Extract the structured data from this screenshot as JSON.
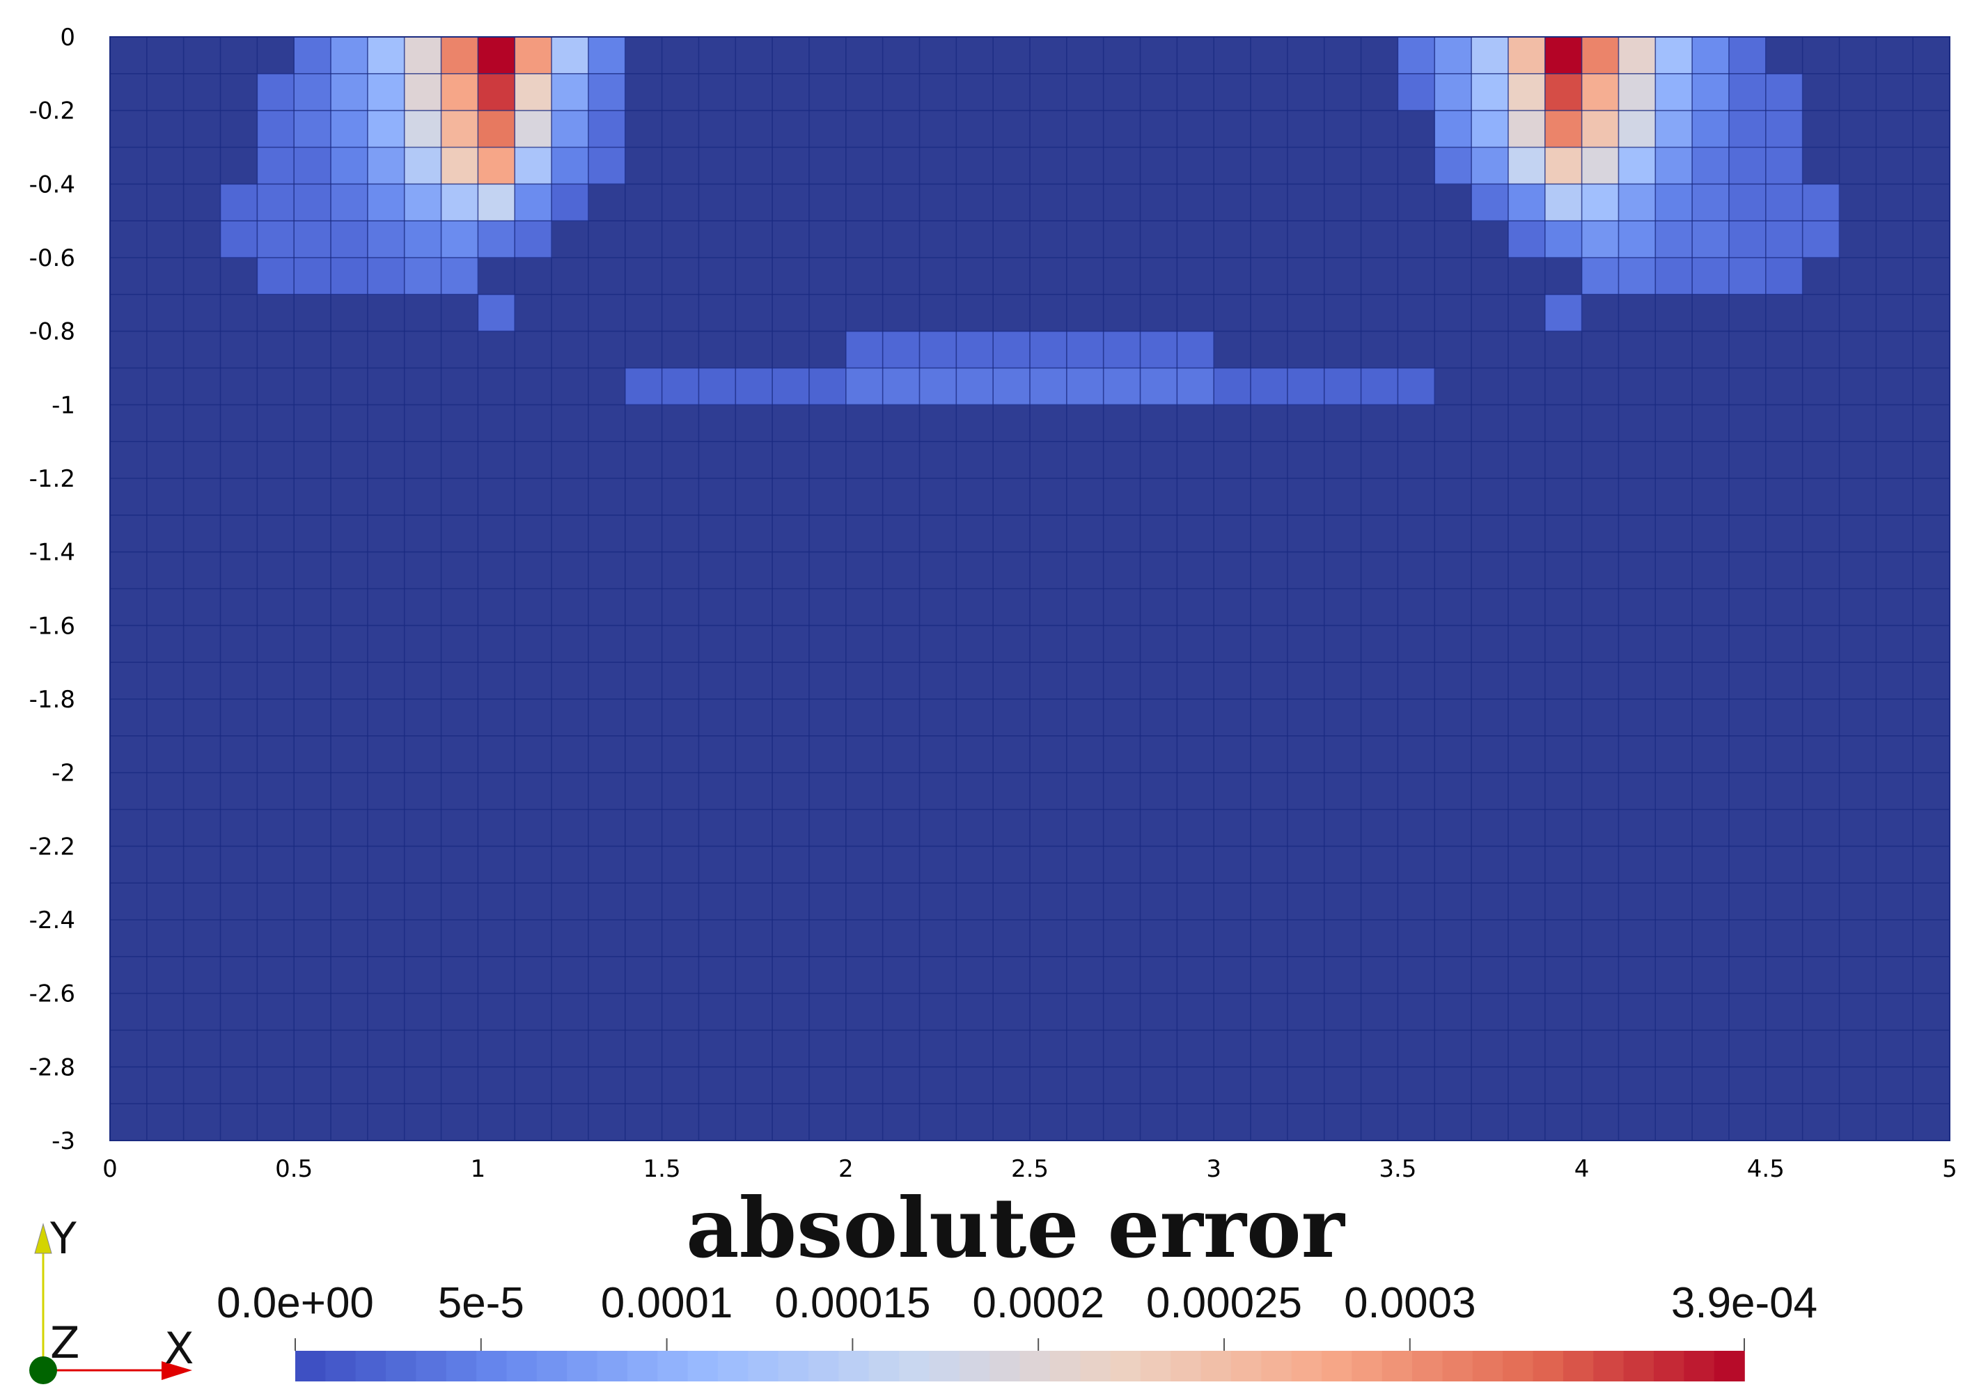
{
  "chart_data": {
    "type": "heatmap",
    "title": "absolute error",
    "xlim": [
      0,
      5
    ],
    "ylim": [
      -3,
      0
    ],
    "x_ticks": [
      "0",
      "0.5",
      "1",
      "1.5",
      "2",
      "2.5",
      "3",
      "3.5",
      "4",
      "4.5",
      "5"
    ],
    "y_ticks": [
      "0",
      "-0.2",
      "-0.4",
      "-0.6",
      "-0.8",
      "-1",
      "-1.2",
      "-1.4",
      "-1.6",
      "-1.8",
      "-2",
      "-2.2",
      "-2.4",
      "-2.6",
      "-2.8",
      "-3"
    ],
    "grid_cols": 50,
    "grid_rows": 30,
    "cell_size": 0.1,
    "vmin": 0,
    "vmax": 0.00039,
    "colormap": [
      "#3b4cc0",
      "#6788ee",
      "#9abbff",
      "#c9d7f0",
      "#edd1c2",
      "#f7a889",
      "#e26952",
      "#b40426"
    ],
    "background_value": 1e-05,
    "cells": [
      [
        0,
        5,
        3.5e-05
      ],
      [
        0,
        6,
        7e-05
      ],
      [
        0,
        7,
        0.00012
      ],
      [
        0,
        8,
        0.0002
      ],
      [
        0,
        9,
        0.00031
      ],
      [
        0,
        10,
        0.00039
      ],
      [
        0,
        11,
        0.00029
      ],
      [
        0,
        12,
        0.00013
      ],
      [
        0,
        13,
        5e-05
      ],
      [
        1,
        4,
        3e-05
      ],
      [
        1,
        5,
        4e-05
      ],
      [
        1,
        6,
        7e-05
      ],
      [
        1,
        7,
        0.0001
      ],
      [
        1,
        8,
        0.0002
      ],
      [
        1,
        9,
        0.00028
      ],
      [
        1,
        10,
        0.00036
      ],
      [
        1,
        11,
        0.00022
      ],
      [
        1,
        12,
        9e-05
      ],
      [
        1,
        13,
        4e-05
      ],
      [
        2,
        4,
        3e-05
      ],
      [
        2,
        5,
        4e-05
      ],
      [
        2,
        6,
        6e-05
      ],
      [
        2,
        7,
        0.0001
      ],
      [
        2,
        8,
        0.00018
      ],
      [
        2,
        9,
        0.00026
      ],
      [
        2,
        10,
        0.00032
      ],
      [
        2,
        11,
        0.00019
      ],
      [
        2,
        12,
        7e-05
      ],
      [
        2,
        13,
        3e-05
      ],
      [
        3,
        4,
        3e-05
      ],
      [
        3,
        5,
        3e-05
      ],
      [
        3,
        6,
        5e-05
      ],
      [
        3,
        7,
        8e-05
      ],
      [
        3,
        8,
        0.00014
      ],
      [
        3,
        9,
        0.00023
      ],
      [
        3,
        10,
        0.00028
      ],
      [
        3,
        11,
        0.00013
      ],
      [
        3,
        12,
        5e-05
      ],
      [
        3,
        13,
        3e-05
      ],
      [
        4,
        3,
        2.5e-05
      ],
      [
        4,
        4,
        3e-05
      ],
      [
        4,
        5,
        3e-05
      ],
      [
        4,
        6,
        4e-05
      ],
      [
        4,
        7,
        6e-05
      ],
      [
        4,
        8,
        9e-05
      ],
      [
        4,
        9,
        0.00013
      ],
      [
        4,
        10,
        0.00016
      ],
      [
        4,
        11,
        6e-05
      ],
      [
        4,
        12,
        2.5e-05
      ],
      [
        5,
        3,
        2.5e-05
      ],
      [
        5,
        4,
        3e-05
      ],
      [
        5,
        5,
        3e-05
      ],
      [
        5,
        6,
        3e-05
      ],
      [
        5,
        7,
        4e-05
      ],
      [
        5,
        8,
        5e-05
      ],
      [
        5,
        9,
        6e-05
      ],
      [
        5,
        10,
        4e-05
      ],
      [
        5,
        11,
        3e-05
      ],
      [
        6,
        4,
        2.5e-05
      ],
      [
        6,
        5,
        2.5e-05
      ],
      [
        6,
        6,
        2.5e-05
      ],
      [
        6,
        7,
        3e-05
      ],
      [
        6,
        8,
        4e-05
      ],
      [
        6,
        9,
        4e-05
      ],
      [
        7,
        10,
        3e-05
      ],
      [
        8,
        20,
        2.5e-05
      ],
      [
        8,
        21,
        2.5e-05
      ],
      [
        8,
        22,
        2.5e-05
      ],
      [
        8,
        23,
        2.5e-05
      ],
      [
        8,
        24,
        2.5e-05
      ],
      [
        8,
        25,
        2.5e-05
      ],
      [
        8,
        26,
        2.5e-05
      ],
      [
        8,
        27,
        2.5e-05
      ],
      [
        8,
        28,
        2.5e-05
      ],
      [
        8,
        29,
        2.5e-05
      ],
      [
        9,
        14,
        2.2e-05
      ],
      [
        9,
        15,
        2.2e-05
      ],
      [
        9,
        16,
        2.2e-05
      ],
      [
        9,
        17,
        2.2e-05
      ],
      [
        9,
        18,
        2.2e-05
      ],
      [
        9,
        19,
        2.2e-05
      ],
      [
        9,
        20,
        4e-05
      ],
      [
        9,
        21,
        4e-05
      ],
      [
        9,
        22,
        4e-05
      ],
      [
        9,
        23,
        4e-05
      ],
      [
        9,
        24,
        4e-05
      ],
      [
        9,
        25,
        4e-05
      ],
      [
        9,
        26,
        4e-05
      ],
      [
        9,
        27,
        4e-05
      ],
      [
        9,
        28,
        4e-05
      ],
      [
        9,
        29,
        4e-05
      ],
      [
        9,
        30,
        2.2e-05
      ],
      [
        9,
        31,
        2.2e-05
      ],
      [
        9,
        32,
        2.2e-05
      ],
      [
        9,
        33,
        2.2e-05
      ],
      [
        9,
        34,
        2.2e-05
      ],
      [
        9,
        35,
        2.2e-05
      ],
      [
        0,
        35,
        4e-05
      ],
      [
        0,
        36,
        7e-05
      ],
      [
        0,
        37,
        0.00013
      ],
      [
        0,
        38,
        0.00025
      ],
      [
        0,
        39,
        0.00039
      ],
      [
        0,
        40,
        0.00031
      ],
      [
        0,
        41,
        0.00021
      ],
      [
        0,
        42,
        0.00012
      ],
      [
        0,
        43,
        6e-05
      ],
      [
        0,
        44,
        3e-05
      ],
      [
        1,
        35,
        3e-05
      ],
      [
        1,
        36,
        7e-05
      ],
      [
        1,
        37,
        0.00012
      ],
      [
        1,
        38,
        0.00022
      ],
      [
        1,
        39,
        0.00035
      ],
      [
        1,
        40,
        0.00027
      ],
      [
        1,
        41,
        0.00019
      ],
      [
        1,
        42,
        0.0001
      ],
      [
        1,
        43,
        6e-05
      ],
      [
        1,
        44,
        3e-05
      ],
      [
        1,
        45,
        3e-05
      ],
      [
        2,
        36,
        6e-05
      ],
      [
        2,
        37,
        0.0001
      ],
      [
        2,
        38,
        0.0002
      ],
      [
        2,
        39,
        0.00031
      ],
      [
        2,
        40,
        0.00024
      ],
      [
        2,
        41,
        0.00018
      ],
      [
        2,
        42,
        9e-05
      ],
      [
        2,
        43,
        5e-05
      ],
      [
        2,
        44,
        3e-05
      ],
      [
        2,
        45,
        3e-05
      ],
      [
        3,
        36,
        4e-05
      ],
      [
        3,
        37,
        7e-05
      ],
      [
        3,
        38,
        0.00016
      ],
      [
        3,
        39,
        0.00023
      ],
      [
        3,
        40,
        0.00019
      ],
      [
        3,
        41,
        0.00012
      ],
      [
        3,
        42,
        7e-05
      ],
      [
        3,
        43,
        4e-05
      ],
      [
        3,
        44,
        3e-05
      ],
      [
        3,
        45,
        3e-05
      ],
      [
        4,
        37,
        3.5e-05
      ],
      [
        4,
        38,
        6e-05
      ],
      [
        4,
        39,
        0.00014
      ],
      [
        4,
        40,
        0.00012
      ],
      [
        4,
        41,
        8e-05
      ],
      [
        4,
        42,
        5e-05
      ],
      [
        4,
        43,
        4e-05
      ],
      [
        4,
        44,
        3e-05
      ],
      [
        4,
        45,
        3e-05
      ],
      [
        4,
        46,
        3e-05
      ],
      [
        5,
        38,
        3e-05
      ],
      [
        5,
        39,
        5e-05
      ],
      [
        5,
        40,
        7e-05
      ],
      [
        5,
        41,
        6e-05
      ],
      [
        5,
        42,
        4e-05
      ],
      [
        5,
        43,
        4e-05
      ],
      [
        5,
        44,
        3e-05
      ],
      [
        5,
        45,
        3e-05
      ],
      [
        5,
        46,
        3e-05
      ],
      [
        6,
        40,
        4e-05
      ],
      [
        6,
        41,
        4e-05
      ],
      [
        6,
        42,
        3e-05
      ],
      [
        6,
        43,
        3e-05
      ],
      [
        6,
        44,
        3e-05
      ],
      [
        6,
        45,
        2.5e-05
      ],
      [
        7,
        39,
        3e-05
      ]
    ],
    "colorbar": {
      "tick_labels": [
        "0.0e+00",
        "5e-5",
        "0.0001",
        "0.00015",
        "0.0002",
        "0.00025",
        "0.0003",
        "3.9e-04"
      ],
      "tick_values": [
        0,
        5e-05,
        0.0001,
        0.00015,
        0.0002,
        0.00025,
        0.0003,
        0.00039
      ],
      "bands": 48
    },
    "orientation_axes": [
      "Y",
      "Z",
      "X"
    ],
    "colors": {
      "background": "#2f3d93",
      "grid_line": "#1a2a80",
      "axis_y": "#d4d400",
      "axis_x": "#e00000",
      "axis_z": "#006400"
    }
  }
}
